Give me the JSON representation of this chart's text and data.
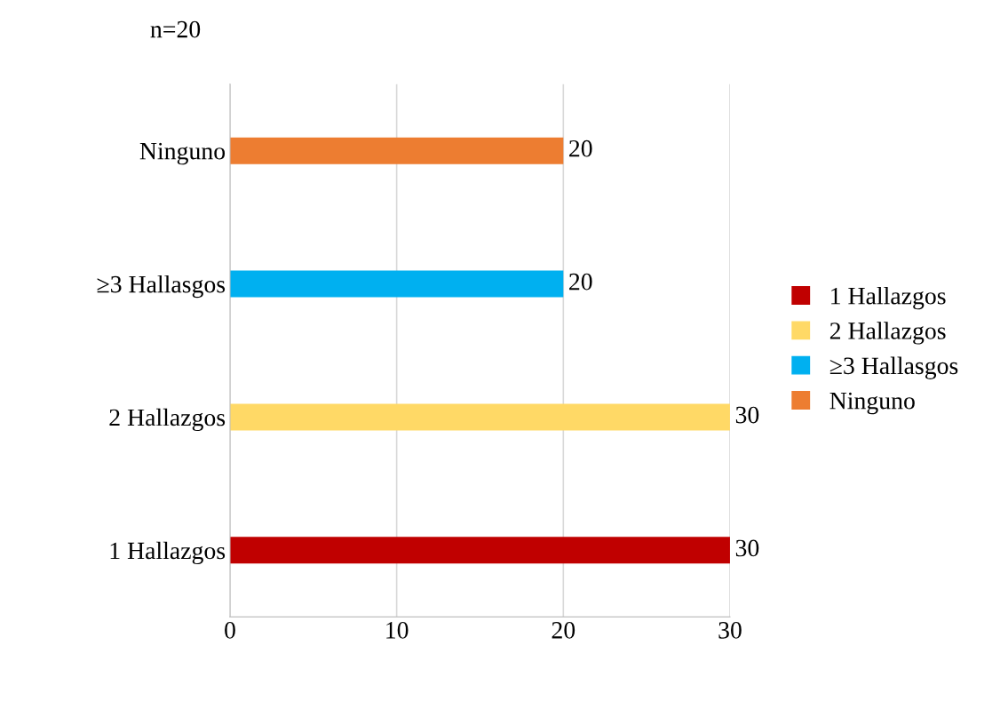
{
  "chart_data": {
    "type": "bar",
    "orientation": "horizontal",
    "title": "n=20",
    "categories": [
      "Ninguno",
      "≥3 Hallasgos",
      "2 Hallazgos",
      "1 Hallazgos"
    ],
    "series": [
      {
        "name": "1 Hallazgos",
        "color": "#c00000",
        "values": [
          null,
          null,
          null,
          30
        ]
      },
      {
        "name": "2 Hallazgos",
        "color": "#ffd966",
        "values": [
          null,
          null,
          30,
          null
        ]
      },
      {
        "name": "≥3 Hallasgos",
        "color": "#00b0f0",
        "values": [
          null,
          20,
          null,
          null
        ]
      },
      {
        "name": "Ninguno",
        "color": "#ed7d31",
        "values": [
          20,
          null,
          null,
          null
        ]
      }
    ],
    "xlim": [
      0,
      30
    ],
    "xticks": [
      0,
      10,
      20,
      30
    ],
    "grid": "x",
    "legend": "right",
    "data_labels": true
  }
}
